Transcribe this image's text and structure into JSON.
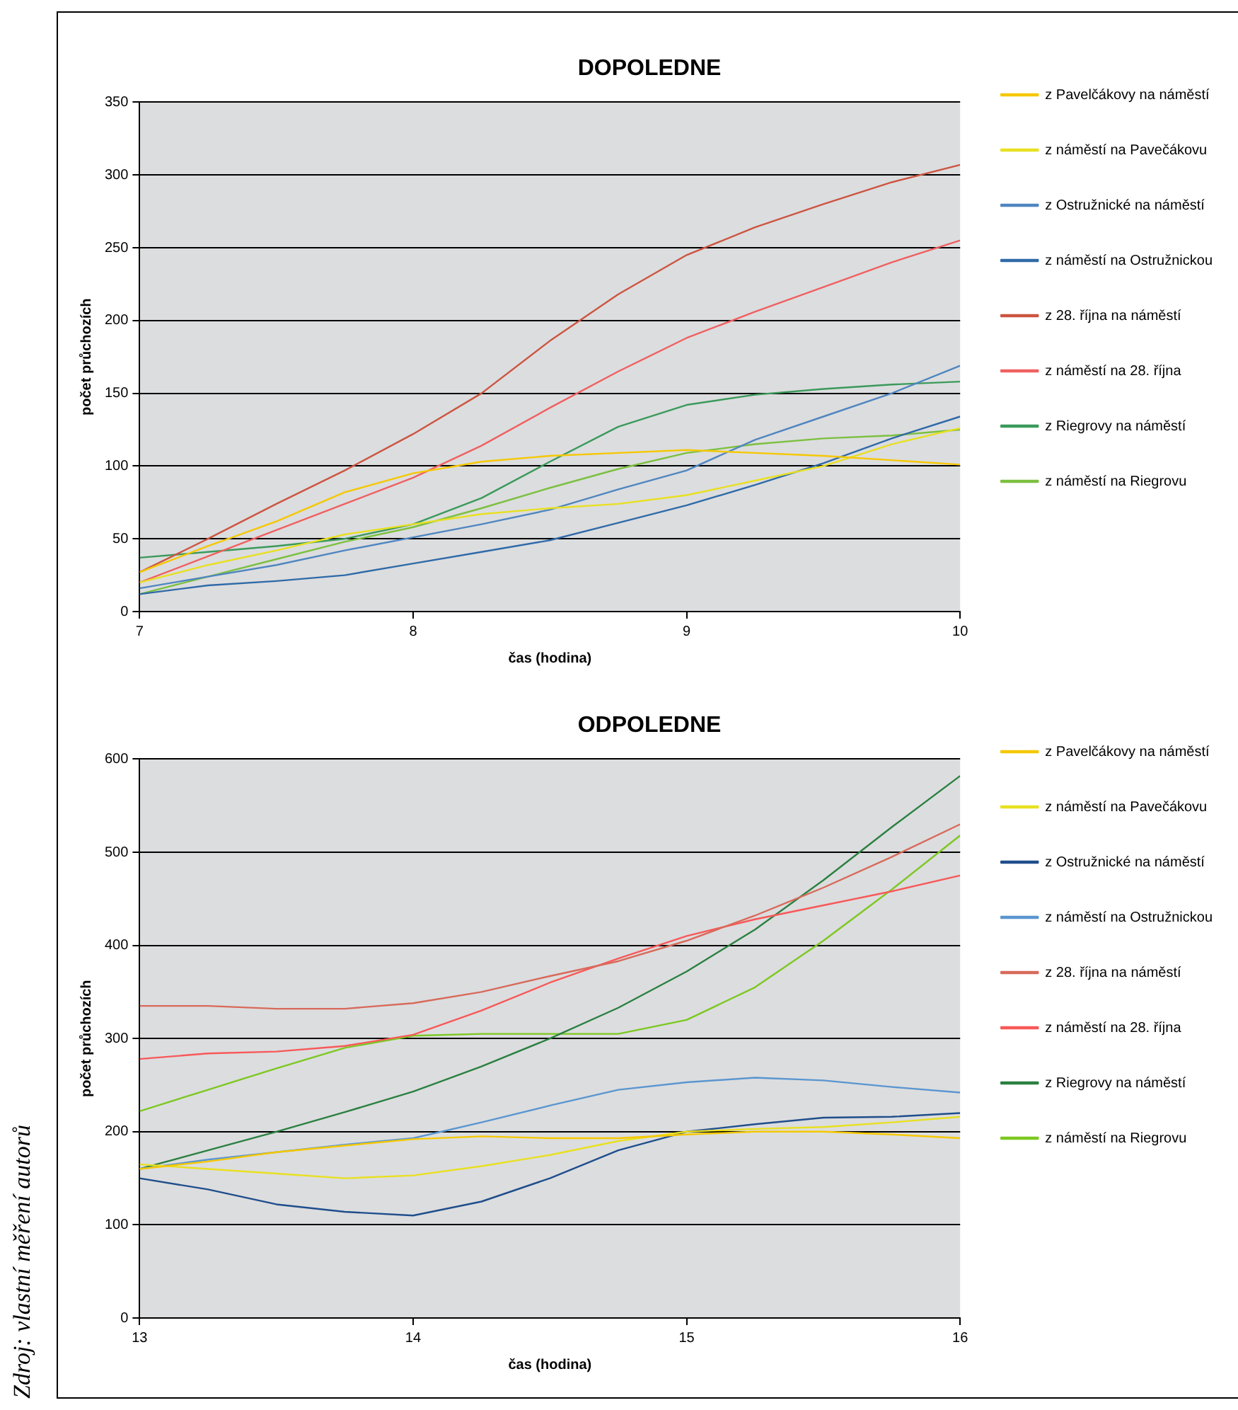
{
  "chart_data": [
    {
      "type": "line",
      "title": "DOPOLEDNE",
      "xlabel": "čas (hodina)",
      "ylabel": "počet průchozích",
      "x": [
        7,
        7.25,
        7.5,
        7.75,
        8,
        8.25,
        8.5,
        8.75,
        9,
        9.25,
        9.5,
        9.75,
        10
      ],
      "xlim": [
        7,
        10
      ],
      "xticks": [
        7,
        8,
        9,
        10
      ],
      "ylim": [
        0,
        350
      ],
      "yticks": [
        0,
        50,
        100,
        150,
        200,
        250,
        300,
        350
      ],
      "grid": "y",
      "legend": "right",
      "marker": "none",
      "line_style": "solid",
      "series": [
        {
          "name": "z Pavelčákovy na náměstí",
          "color": "#f5c800",
          "values": [
            27,
            45,
            62,
            82,
            95,
            103,
            107,
            109,
            111,
            109,
            107,
            104,
            101
          ]
        },
        {
          "name": "z náměstí na Pavečákovu",
          "color": "#e8e020",
          "values": [
            20,
            32,
            42,
            53,
            60,
            67,
            71,
            74,
            80,
            90,
            100,
            115,
            126
          ]
        },
        {
          "name": "z Ostružnické na náměstí",
          "color": "#4f86c0",
          "values": [
            16,
            24,
            32,
            42,
            51,
            60,
            70,
            84,
            97,
            118,
            134,
            150,
            169
          ]
        },
        {
          "name": "z náměstí na Ostružnickou",
          "color": "#2f6aa8",
          "values": [
            12,
            18,
            21,
            25,
            33,
            41,
            49,
            61,
            73,
            87,
            102,
            119,
            134
          ]
        },
        {
          "name": "z 28. října na náměstí",
          "color": "#cc5540",
          "values": [
            27,
            50,
            74,
            97,
            122,
            150,
            186,
            218,
            245,
            264,
            280,
            295,
            307
          ]
        },
        {
          "name": "z náměstí na 28. října",
          "color": "#f06060",
          "values": [
            20,
            38,
            56,
            74,
            92,
            114,
            140,
            165,
            188,
            206,
            223,
            240,
            255
          ]
        },
        {
          "name": "z Riegrovy na náměstí",
          "color": "#3a9a5a",
          "values": [
            37,
            41,
            45,
            50,
            60,
            78,
            103,
            127,
            142,
            149,
            153,
            156,
            158
          ]
        },
        {
          "name": "z náměstí na Riegrovu",
          "color": "#7cc040",
          "values": [
            12,
            24,
            36,
            48,
            58,
            71,
            85,
            98,
            109,
            115,
            119,
            121,
            125
          ]
        }
      ]
    },
    {
      "type": "line",
      "title": "ODPOLEDNE",
      "xlabel": "čas (hodina)",
      "ylabel": "počet průchozích",
      "x": [
        13,
        13.25,
        13.5,
        13.75,
        14,
        14.25,
        14.5,
        14.75,
        15,
        15.25,
        15.5,
        15.75,
        16
      ],
      "xlim": [
        13,
        16
      ],
      "xticks": [
        13,
        14,
        15,
        16
      ],
      "ylim": [
        0,
        600
      ],
      "yticks": [
        0,
        100,
        200,
        300,
        400,
        500,
        600
      ],
      "grid": "y",
      "legend": "right",
      "marker": "none",
      "line_style": "solid",
      "annotations": [
        "Zdroj: vlastní měření autorů"
      ],
      "series": [
        {
          "name": "z Pavelčákovy na náměstí",
          "color": "#f5c800",
          "values": [
            160,
            168,
            178,
            185,
            192,
            195,
            193,
            193,
            197,
            200,
            200,
            197,
            193
          ]
        },
        {
          "name": "z náměstí na Pavečákovu",
          "color": "#e8e020",
          "values": [
            165,
            160,
            155,
            150,
            153,
            163,
            175,
            190,
            200,
            203,
            205,
            210,
            216
          ]
        },
        {
          "name": "z Ostružnické na náměstí",
          "color": "#1f4e8c",
          "values": [
            150,
            138,
            122,
            114,
            110,
            125,
            150,
            180,
            200,
            208,
            215,
            216,
            220
          ]
        },
        {
          "name": "z náměstí na Ostružnickou",
          "color": "#5a96d0",
          "values": [
            160,
            170,
            178,
            186,
            193,
            210,
            228,
            245,
            253,
            258,
            255,
            248,
            242
          ]
        },
        {
          "name": "z 28. října na náměstí",
          "color": "#d86a5a",
          "values": [
            335,
            335,
            332,
            332,
            338,
            350,
            367,
            383,
            405,
            432,
            462,
            495,
            530
          ]
        },
        {
          "name": "z náměstí na 28. října",
          "color": "#f85858",
          "values": [
            278,
            284,
            286,
            292,
            304,
            330,
            360,
            386,
            410,
            428,
            443,
            458,
            475
          ]
        },
        {
          "name": "z Riegrovy na náměstí",
          "color": "#2a8040",
          "values": [
            160,
            180,
            200,
            221,
            243,
            270,
            300,
            333,
            372,
            417,
            470,
            527,
            582
          ]
        },
        {
          "name": "z náměstí na Riegrovu",
          "color": "#7cc820",
          "values": [
            222,
            245,
            268,
            290,
            303,
            305,
            305,
            305,
            320,
            355,
            405,
            460,
            518
          ]
        }
      ]
    }
  ]
}
